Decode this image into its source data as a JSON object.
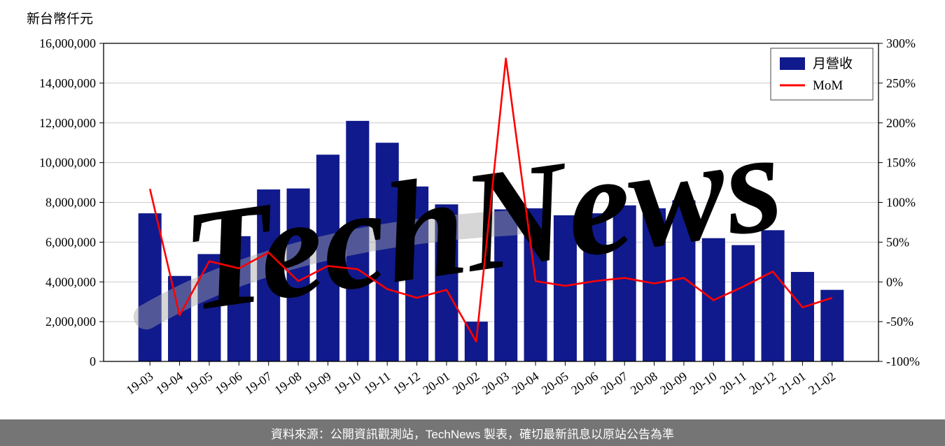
{
  "page": {
    "unit_label": "新台幣仟元"
  },
  "footer": {
    "text": "資料來源：公開資訊觀測站，TechNews 製表，確切最新訊息以原站公告為準"
  },
  "watermark": {
    "text": "TechNews",
    "color": "rgba(233,80,80,0.28)",
    "swoosh_color": "rgba(165,165,165,0.45)"
  },
  "chart_data": {
    "type": "bar+line",
    "title": "",
    "categories": [
      "19-03",
      "19-04",
      "19-05",
      "19-06",
      "19-07",
      "19-08",
      "19-09",
      "19-10",
      "19-11",
      "19-12",
      "20-01",
      "20-02",
      "20-03",
      "20-04",
      "20-05",
      "20-06",
      "20-07",
      "20-08",
      "20-09",
      "20-10",
      "20-11",
      "20-12",
      "21-01",
      "21-02"
    ],
    "series": [
      {
        "name": "月營收",
        "type": "bar",
        "axis": "left",
        "color": "#101a8c",
        "values": [
          7450000,
          4300000,
          5400000,
          6300000,
          8650000,
          8700000,
          10400000,
          12100000,
          11000000,
          8800000,
          7900000,
          2000000,
          7650000,
          7700000,
          7350000,
          7450000,
          7850000,
          7700000,
          8100000,
          6200000,
          5850000,
          6600000,
          4500000,
          3600000
        ]
      },
      {
        "name": "MoM",
        "type": "line",
        "axis": "right",
        "color": "#ff0000",
        "values": [
          117,
          -42,
          26,
          17,
          37,
          1,
          20,
          16,
          -9,
          -20,
          -10,
          -75,
          281,
          1,
          -5,
          1,
          5,
          -2,
          5,
          -23,
          -6,
          13,
          -32,
          -20
        ]
      }
    ],
    "left_axis": {
      "label": "新台幣仟元",
      "min": 0,
      "max": 16000000,
      "tick_step": 2000000
    },
    "right_axis": {
      "min": -100,
      "max": 300,
      "tick_step": 50,
      "suffix": "%"
    },
    "legend_position": "top-right",
    "grid": true,
    "grid_color": "#c9c9c9"
  }
}
